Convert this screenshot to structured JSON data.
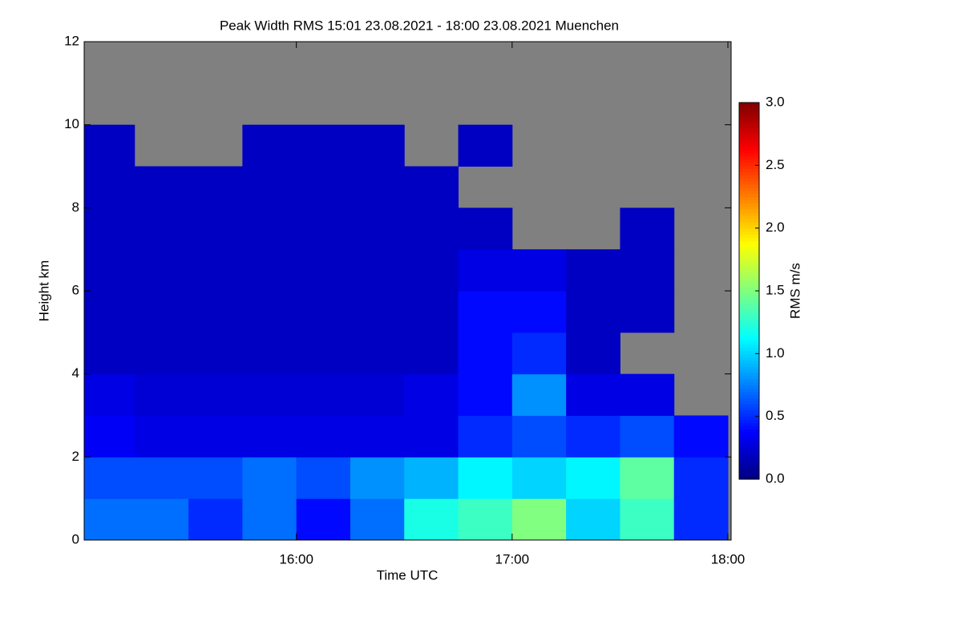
{
  "chart_data": {
    "type": "heatmap",
    "title": "Peak Width RMS   15:01 23.08.2021 - 18:00 23.08.2021 Muenchen",
    "x_label": "Time UTC",
    "y_label": "Height km",
    "colorbar_label": "RMS m/s",
    "colormap": "jet",
    "missing_color": "#808080",
    "x_edges": [
      15.0167,
      15.25,
      15.5,
      15.75,
      16.0,
      16.25,
      16.5,
      16.75,
      17.0,
      17.25,
      17.5,
      17.75,
      18.0
    ],
    "y_edges": [
      0,
      1,
      2,
      3,
      4,
      5,
      6,
      7,
      8,
      9,
      10,
      11,
      12
    ],
    "values": [
      [
        0.7,
        0.7,
        0.5,
        0.7,
        0.4,
        0.7,
        1.2,
        1.3,
        1.5,
        1.0,
        1.3,
        0.5
      ],
      [
        0.6,
        0.6,
        0.6,
        0.7,
        0.6,
        0.8,
        0.9,
        1.1,
        1.0,
        1.1,
        1.4,
        0.5
      ],
      [
        0.35,
        0.3,
        0.3,
        0.3,
        0.3,
        0.3,
        0.3,
        0.5,
        0.6,
        0.5,
        0.6,
        0.4
      ],
      [
        0.3,
        0.25,
        0.25,
        0.25,
        0.25,
        0.25,
        0.3,
        0.4,
        0.8,
        0.3,
        0.3,
        null
      ],
      [
        0.2,
        0.2,
        0.2,
        0.2,
        0.2,
        0.2,
        0.2,
        0.4,
        0.5,
        0.2,
        null,
        null
      ],
      [
        0.2,
        0.2,
        0.2,
        0.2,
        0.2,
        0.2,
        0.2,
        0.4,
        0.4,
        0.2,
        0.2,
        null
      ],
      [
        0.2,
        0.2,
        0.2,
        0.2,
        0.2,
        0.2,
        0.2,
        0.3,
        0.3,
        0.2,
        0.2,
        null
      ],
      [
        0.2,
        0.2,
        0.2,
        0.2,
        0.2,
        0.2,
        0.2,
        0.2,
        null,
        null,
        0.2,
        null
      ],
      [
        0.2,
        0.2,
        0.2,
        0.2,
        0.2,
        0.2,
        0.2,
        null,
        null,
        null,
        null,
        null
      ],
      [
        0.2,
        null,
        null,
        0.2,
        0.2,
        0.2,
        null,
        0.2,
        null,
        null,
        null,
        null
      ],
      [
        null,
        null,
        null,
        null,
        null,
        null,
        null,
        null,
        null,
        null,
        null,
        null
      ],
      [
        null,
        null,
        null,
        null,
        null,
        null,
        null,
        null,
        null,
        null,
        null,
        null
      ]
    ],
    "xlim": [
      15.0167,
      18.0
    ],
    "xticks": [
      {
        "value": 16,
        "label": "16:00"
      },
      {
        "value": 17,
        "label": "17:00"
      },
      {
        "value": 18,
        "label": "18:00"
      }
    ],
    "ylim": [
      0,
      12
    ],
    "yticks": [
      0,
      2,
      4,
      6,
      8,
      10,
      12
    ],
    "zlim": [
      0,
      3
    ],
    "zticks": [
      {
        "value": 0,
        "label": "0.0"
      },
      0.5,
      {
        "value": 1,
        "label": "1.0"
      },
      1.5,
      {
        "value": 2,
        "label": "2.0"
      },
      2.5,
      {
        "value": 3,
        "label": "3.0"
      }
    ]
  }
}
